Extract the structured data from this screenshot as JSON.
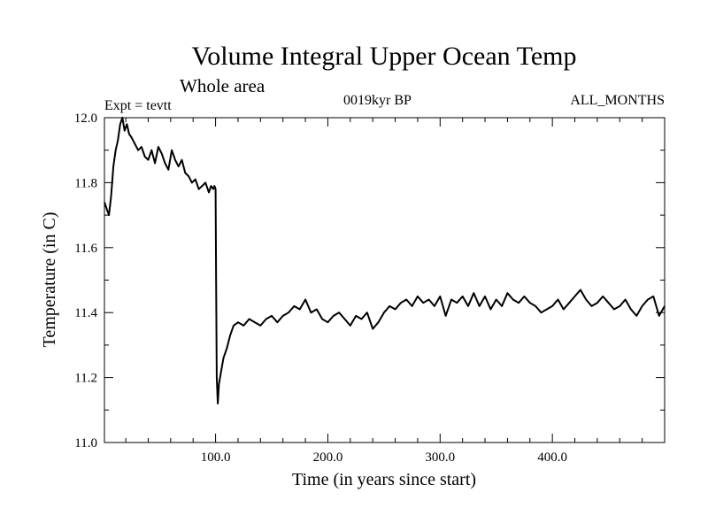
{
  "chart_data": {
    "type": "line",
    "title": "Volume Integral Upper Ocean Temp",
    "subtitle": "Whole area",
    "annotations": {
      "experiment": "Expt = tevtt",
      "period": "0019kyr BP",
      "months": "ALL_MONTHS"
    },
    "xlabel": "Time (in years since start)",
    "ylabel": "Temperature (in C)",
    "xlim": [
      1,
      500
    ],
    "ylim": [
      11.0,
      12.0
    ],
    "x_ticks": [
      "100.0",
      "200.0",
      "300.0",
      "400.0"
    ],
    "x_tick_values": [
      100,
      200,
      300,
      400
    ],
    "y_ticks": [
      "11.0",
      "11.2",
      "11.4",
      "11.6",
      "11.8",
      "12.0"
    ],
    "y_tick_values": [
      11.0,
      11.2,
      11.4,
      11.6,
      11.8,
      12.0
    ],
    "grid": false,
    "series": [
      {
        "x": [
          1,
          3,
          5,
          7,
          9,
          11,
          13,
          15,
          17,
          19,
          21,
          23,
          25,
          28,
          31,
          34,
          37,
          40,
          43,
          46,
          49,
          52,
          55,
          58,
          61,
          64,
          67,
          70,
          73,
          76,
          79,
          82,
          85,
          88,
          91,
          94,
          96,
          98,
          99,
          100,
          100.5,
          101,
          102,
          103,
          105,
          107,
          110,
          113,
          116,
          120,
          125,
          130,
          135,
          140,
          145,
          150,
          155,
          160,
          165,
          170,
          175,
          180,
          185,
          190,
          195,
          200,
          205,
          210,
          215,
          220,
          225,
          230,
          235,
          240,
          245,
          250,
          255,
          260,
          265,
          270,
          275,
          280,
          285,
          290,
          295,
          300,
          305,
          310,
          315,
          320,
          325,
          330,
          335,
          340,
          345,
          350,
          355,
          360,
          365,
          370,
          375,
          380,
          385,
          390,
          395,
          400,
          405,
          410,
          415,
          420,
          425,
          430,
          435,
          440,
          445,
          450,
          455,
          460,
          465,
          470,
          475,
          480,
          485,
          490,
          495,
          500
        ],
        "y": [
          11.74,
          11.72,
          11.7,
          11.76,
          11.85,
          11.9,
          11.93,
          11.98,
          12.0,
          11.96,
          11.98,
          11.95,
          11.94,
          11.92,
          11.9,
          11.91,
          11.88,
          11.87,
          11.9,
          11.86,
          11.91,
          11.89,
          11.86,
          11.84,
          11.9,
          11.87,
          11.85,
          11.87,
          11.83,
          11.82,
          11.8,
          11.81,
          11.78,
          11.79,
          11.8,
          11.77,
          11.79,
          11.78,
          11.79,
          11.78,
          11.5,
          11.2,
          11.12,
          11.18,
          11.22,
          11.26,
          11.29,
          11.33,
          11.36,
          11.37,
          11.36,
          11.38,
          11.37,
          11.36,
          11.38,
          11.39,
          11.37,
          11.39,
          11.4,
          11.42,
          11.41,
          11.44,
          11.4,
          11.41,
          11.38,
          11.37,
          11.39,
          11.4,
          11.38,
          11.36,
          11.39,
          11.38,
          11.4,
          11.35,
          11.37,
          11.4,
          11.42,
          11.41,
          11.43,
          11.44,
          11.42,
          11.45,
          11.43,
          11.44,
          11.42,
          11.45,
          11.39,
          11.44,
          11.43,
          11.45,
          11.42,
          11.46,
          11.42,
          11.45,
          11.41,
          11.44,
          11.42,
          11.46,
          11.44,
          11.43,
          11.45,
          11.43,
          11.42,
          11.4,
          11.41,
          11.42,
          11.44,
          11.41,
          11.43,
          11.45,
          11.47,
          11.44,
          11.42,
          11.43,
          11.45,
          11.43,
          11.41,
          11.42,
          11.44,
          11.41,
          11.39,
          11.42,
          11.44,
          11.45,
          11.39,
          11.42
        ]
      }
    ]
  }
}
